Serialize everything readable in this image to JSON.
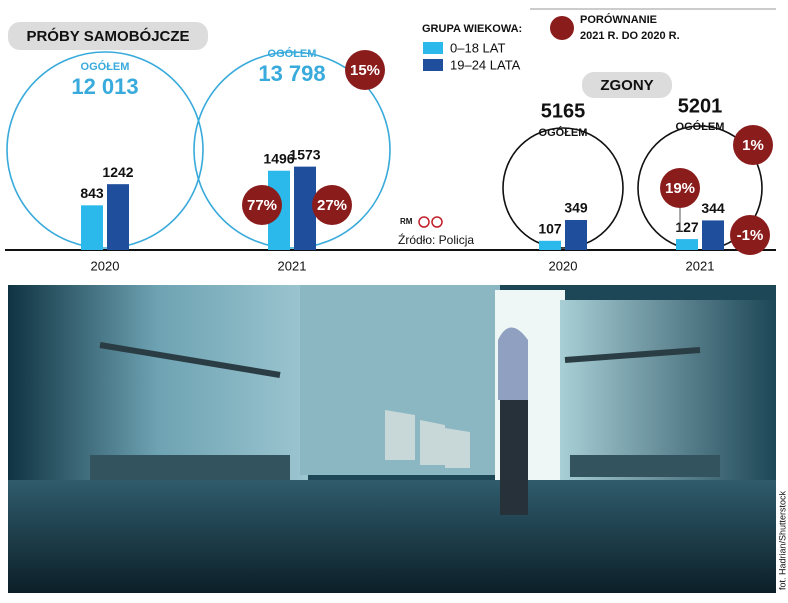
{
  "chart_data": [
    {
      "type": "circle-bar",
      "title": "PRÓBY SAMOBÓJCZE",
      "categories": [
        "2020",
        "2021"
      ],
      "total_label": "OGÓŁEM",
      "totals": [
        12013,
        13798
      ],
      "total_value_labels": [
        "12 013",
        "13 798"
      ],
      "total_changes": [
        null,
        15
      ],
      "total_change_labels": [
        null,
        "15%"
      ],
      "circle_color": "#38aadb",
      "series": [
        {
          "name": "0–18 LAT",
          "color": "#2bb9ec",
          "values": [
            843,
            1496
          ],
          "changes": [
            null,
            77
          ],
          "change_labels": [
            null,
            "77%"
          ]
        },
        {
          "name": "19–24 LATA",
          "color": "#1f4e9c",
          "values": [
            1242,
            1573
          ],
          "changes": [
            null,
            27
          ],
          "change_labels": [
            null,
            "27%"
          ]
        }
      ]
    },
    {
      "type": "circle-bar",
      "title": "ZGONY",
      "categories": [
        "2020",
        "2021"
      ],
      "total_label": "OGÓŁEM",
      "totals": [
        5165,
        5201
      ],
      "total_changes": [
        null,
        1
      ],
      "total_change_labels": [
        null,
        "1%"
      ],
      "circle_color": "#111111",
      "series": [
        {
          "color": "#2bb9ec",
          "values": [
            107,
            127
          ],
          "changes": [
            null,
            19
          ],
          "change_labels": [
            null,
            "19%"
          ]
        },
        {
          "color": "#1f4e9c",
          "values": [
            349,
            344
          ],
          "changes": [
            null,
            -1
          ],
          "change_labels": [
            null,
            "-1%"
          ]
        }
      ]
    }
  ],
  "legend_title": "GRUPA WIEKOWA:",
  "comparison_label": [
    "PORÓWNANIE",
    "2021 R. DO 2020 R."
  ],
  "change_color": "#8b1c1c",
  "logo": "RM",
  "source": "Źródło: Policja",
  "photo_credit": "fot. Hadrian/Shutterstock"
}
